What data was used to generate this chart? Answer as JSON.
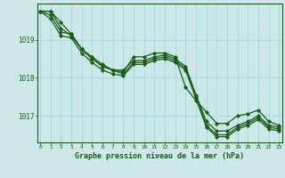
{
  "title": "Graphe pression niveau de la mer (hPa)",
  "background_color": "#cce8e8",
  "grid_color": "#aadddd",
  "line_color": "#1a5c1a",
  "marker_color": "#1a5c1a",
  "xlim": [
    -0.3,
    23.3
  ],
  "ylim": [
    1016.3,
    1019.95
  ],
  "yticks": [
    1017,
    1018,
    1019
  ],
  "xticks": [
    0,
    1,
    2,
    3,
    4,
    5,
    6,
    7,
    8,
    9,
    10,
    11,
    12,
    13,
    14,
    15,
    16,
    17,
    18,
    19,
    20,
    21,
    22,
    23
  ],
  "series": [
    [
      1019.75,
      1019.75,
      1019.45,
      1019.15,
      1018.75,
      1018.55,
      1018.35,
      1018.2,
      1018.15,
      1018.55,
      1018.55,
      1018.65,
      1018.65,
      1018.55,
      1017.75,
      1017.4,
      1017.1,
      1016.8,
      1016.8,
      1017.0,
      1017.05,
      1017.15,
      1016.85,
      1016.75
    ],
    [
      1019.75,
      1019.75,
      1019.3,
      1019.1,
      1018.75,
      1018.5,
      1018.3,
      1018.2,
      1018.2,
      1018.45,
      1018.45,
      1018.55,
      1018.6,
      1018.5,
      1018.3,
      1017.55,
      1016.85,
      1016.6,
      1016.6,
      1016.75,
      1016.85,
      1017.0,
      1016.75,
      1016.7
    ],
    [
      1019.75,
      1019.65,
      1019.2,
      1019.15,
      1018.75,
      1018.5,
      1018.3,
      1018.2,
      1018.1,
      1018.4,
      1018.4,
      1018.5,
      1018.55,
      1018.45,
      1018.25,
      1017.5,
      1016.75,
      1016.5,
      1016.5,
      1016.7,
      1016.8,
      1016.95,
      1016.7,
      1016.65
    ],
    [
      1019.75,
      1019.55,
      1019.1,
      1019.05,
      1018.65,
      1018.4,
      1018.2,
      1018.1,
      1018.05,
      1018.35,
      1018.35,
      1018.45,
      1018.5,
      1018.4,
      1018.2,
      1017.45,
      1016.7,
      1016.45,
      1016.45,
      1016.65,
      1016.75,
      1016.9,
      1016.65,
      1016.6
    ]
  ]
}
